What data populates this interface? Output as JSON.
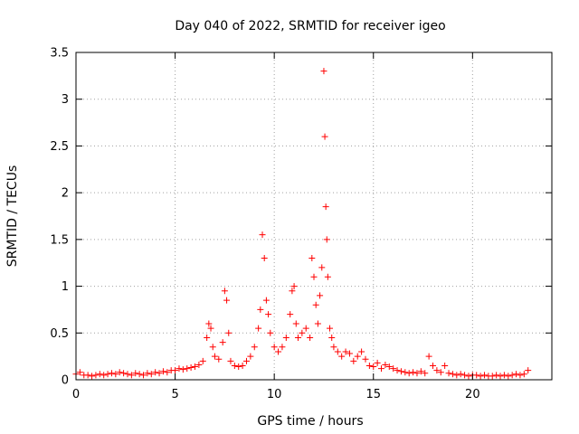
{
  "chart_data": {
    "type": "scatter",
    "title": "Day 040 of 2022, SRMTID for receiver igeo",
    "xlabel": "GPS time / hours",
    "ylabel": "SRMTID / TECUs",
    "xlim": [
      0,
      24
    ],
    "ylim": [
      0,
      3.5
    ],
    "xticks": [
      0,
      5,
      10,
      15,
      20
    ],
    "xtick_labels": [
      "0",
      "5",
      "10",
      "15",
      "20"
    ],
    "yticks": [
      0,
      0.5,
      1,
      1.5,
      2,
      2.5,
      3,
      3.5
    ],
    "ytick_labels": [
      "0",
      "0.5",
      "1",
      "1.5",
      "2",
      "2.5",
      "3",
      "3.5"
    ],
    "grid": true,
    "marker": "+",
    "series": [
      {
        "name": "SRMTID",
        "color": "#ff0000",
        "x": [
          0.0,
          0.2,
          0.4,
          0.6,
          0.8,
          1.0,
          1.2,
          1.4,
          1.6,
          1.8,
          2.0,
          2.2,
          2.4,
          2.6,
          2.8,
          3.0,
          3.2,
          3.4,
          3.6,
          3.8,
          4.0,
          4.2,
          4.4,
          4.6,
          4.8,
          5.0,
          5.2,
          5.4,
          5.6,
          5.8,
          6.0,
          6.2,
          6.4,
          6.6,
          6.7,
          6.8,
          6.9,
          7.0,
          7.2,
          7.4,
          7.5,
          7.6,
          7.7,
          7.8,
          8.0,
          8.2,
          8.4,
          8.6,
          8.8,
          9.0,
          9.2,
          9.3,
          9.4,
          9.5,
          9.6,
          9.7,
          9.8,
          10.0,
          10.2,
          10.4,
          10.6,
          10.8,
          10.9,
          11.0,
          11.1,
          11.2,
          11.4,
          11.6,
          11.8,
          11.9,
          12.0,
          12.1,
          12.2,
          12.3,
          12.4,
          12.5,
          12.55,
          12.6,
          12.65,
          12.7,
          12.8,
          12.9,
          13.0,
          13.2,
          13.4,
          13.6,
          13.8,
          14.0,
          14.2,
          14.4,
          14.6,
          14.8,
          15.0,
          15.2,
          15.4,
          15.6,
          15.8,
          16.0,
          16.2,
          16.4,
          16.6,
          16.8,
          17.0,
          17.2,
          17.4,
          17.6,
          17.8,
          18.0,
          18.2,
          18.4,
          18.6,
          18.8,
          19.0,
          19.2,
          19.4,
          19.6,
          19.8,
          20.0,
          20.2,
          20.4,
          20.6,
          20.8,
          21.0,
          21.2,
          21.4,
          21.6,
          21.8,
          22.0,
          22.2,
          22.4,
          22.6,
          22.8
        ],
        "y": [
          0.06,
          0.08,
          0.05,
          0.05,
          0.04,
          0.05,
          0.06,
          0.05,
          0.06,
          0.07,
          0.06,
          0.08,
          0.07,
          0.06,
          0.05,
          0.07,
          0.06,
          0.05,
          0.07,
          0.06,
          0.08,
          0.07,
          0.09,
          0.08,
          0.1,
          0.1,
          0.12,
          0.11,
          0.12,
          0.13,
          0.14,
          0.16,
          0.2,
          0.45,
          0.6,
          0.55,
          0.35,
          0.25,
          0.22,
          0.4,
          0.95,
          0.85,
          0.5,
          0.2,
          0.15,
          0.14,
          0.15,
          0.2,
          0.25,
          0.35,
          0.55,
          0.75,
          1.55,
          1.3,
          0.85,
          0.7,
          0.5,
          0.35,
          0.3,
          0.35,
          0.45,
          0.7,
          0.95,
          1.0,
          0.6,
          0.45,
          0.5,
          0.55,
          0.45,
          1.3,
          1.1,
          0.8,
          0.6,
          0.9,
          1.2,
          3.3,
          2.6,
          1.85,
          1.5,
          1.1,
          0.55,
          0.45,
          0.35,
          0.3,
          0.25,
          0.3,
          0.28,
          0.2,
          0.25,
          0.3,
          0.22,
          0.15,
          0.14,
          0.18,
          0.12,
          0.16,
          0.14,
          0.12,
          0.1,
          0.09,
          0.08,
          0.07,
          0.08,
          0.07,
          0.09,
          0.07,
          0.25,
          0.15,
          0.1,
          0.08,
          0.15,
          0.07,
          0.06,
          0.05,
          0.06,
          0.05,
          0.04,
          0.05,
          0.05,
          0.04,
          0.05,
          0.04,
          0.04,
          0.05,
          0.04,
          0.05,
          0.04,
          0.05,
          0.06,
          0.05,
          0.06,
          0.1
        ]
      }
    ]
  }
}
